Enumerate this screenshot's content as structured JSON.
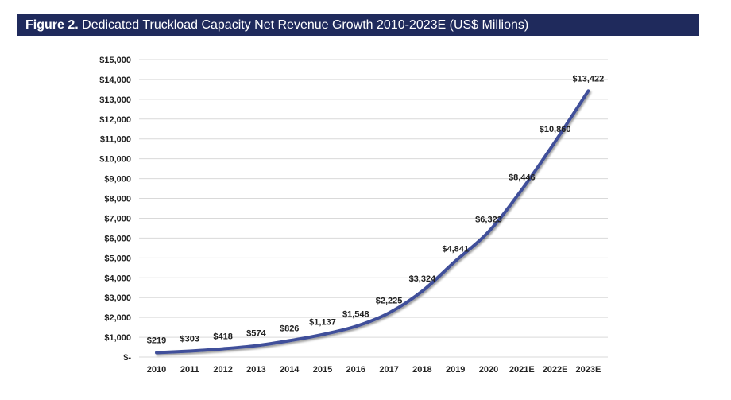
{
  "title_prefix": "Figure 2.",
  "title": "Dedicated Truckload Capacity Net Revenue Growth 2010-2023E (US$ Millions)",
  "colors": {
    "title_bar": "#1f2a5c",
    "line": "#3f4f9a",
    "grid": "#d9d9d9"
  },
  "chart_data": {
    "type": "line",
    "title": "Dedicated Truckload Capacity Net Revenue Growth 2010-2023E (US$ Millions)",
    "categories": [
      "2010",
      "2011",
      "2012",
      "2013",
      "2014",
      "2015",
      "2016",
      "2017",
      "2018",
      "2019",
      "2020",
      "2021E",
      "2022E",
      "2023E"
    ],
    "values": [
      219,
      303,
      418,
      574,
      826,
      1137,
      1548,
      2225,
      3324,
      4841,
      6323,
      8446,
      10860,
      13422
    ],
    "data_labels": [
      "$219",
      "$303",
      "$418",
      "$574",
      "$826",
      "$1,137",
      "$1,548",
      "$2,225",
      "$3,324",
      "$4,841",
      "$6,323",
      "$8,446",
      "$10,860",
      "$13,422"
    ],
    "ylim": [
      0,
      15000
    ],
    "yticks": [
      0,
      1000,
      2000,
      3000,
      4000,
      5000,
      6000,
      7000,
      8000,
      9000,
      10000,
      11000,
      12000,
      13000,
      14000,
      15000
    ],
    "ytick_labels": [
      "$-",
      "$1,000",
      "$2,000",
      "$3,000",
      "$4,000",
      "$5,000",
      "$6,000",
      "$7,000",
      "$8,000",
      "$9,000",
      "$10,000",
      "$11,000",
      "$12,000",
      "$13,000",
      "$14,000",
      "$15,000"
    ],
    "grid": true,
    "xlabel": "",
    "ylabel": ""
  }
}
